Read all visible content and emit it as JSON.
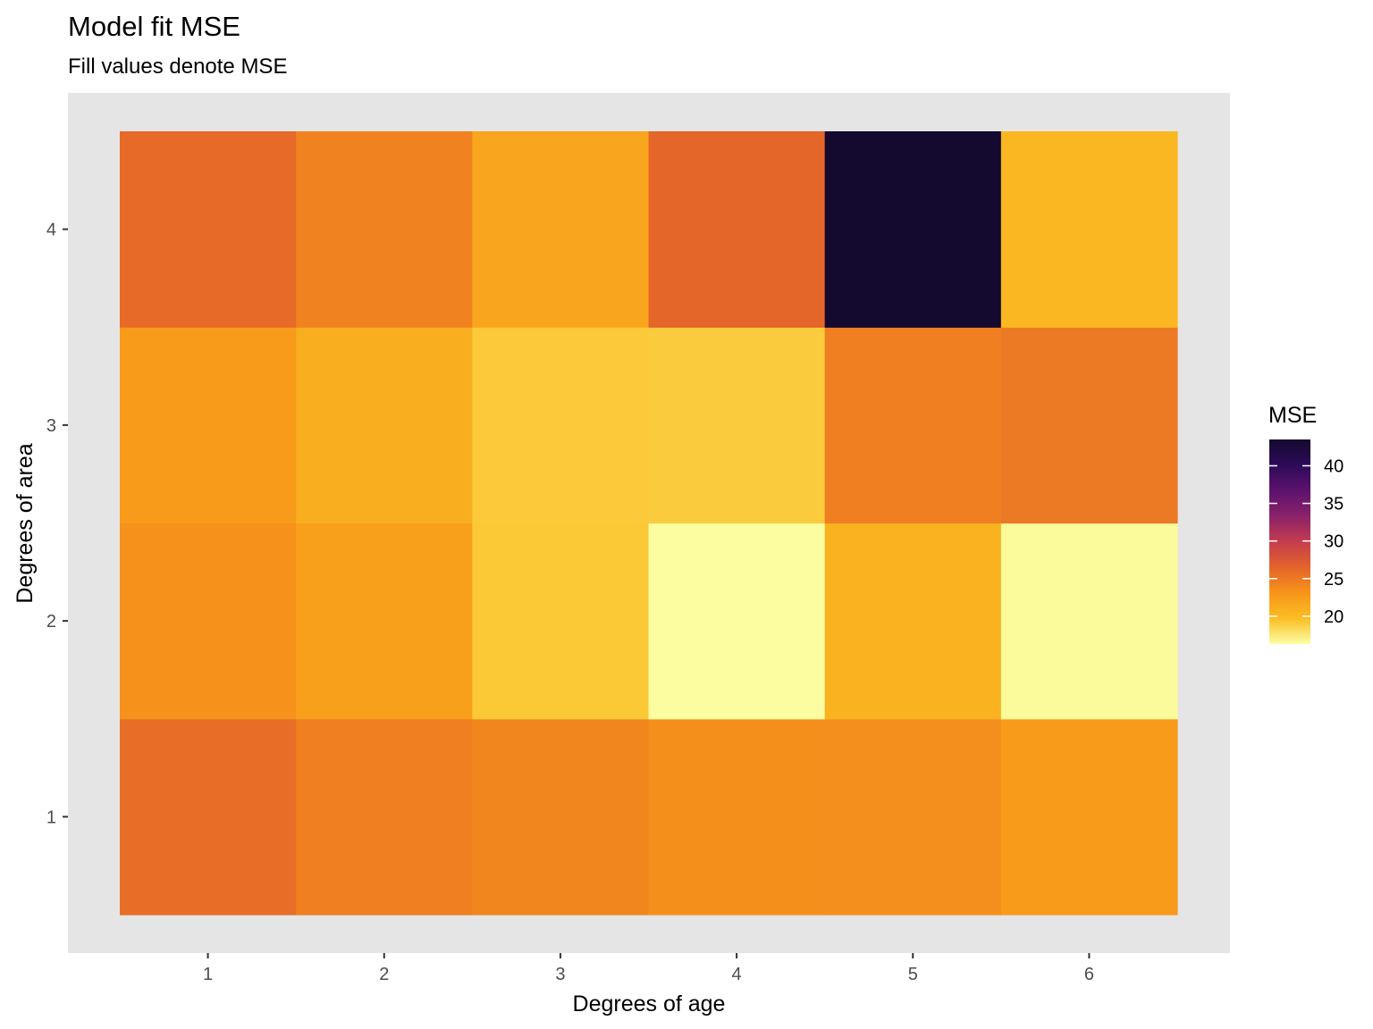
{
  "chart_data": {
    "type": "heatmap",
    "title": "Model fit MSE",
    "subtitle": "Fill values denote MSE",
    "xlabel": "Degrees of age",
    "ylabel": "Degrees of area",
    "x_categories": [
      "1",
      "2",
      "3",
      "4",
      "5",
      "6"
    ],
    "y_categories": [
      "1",
      "2",
      "3",
      "4"
    ],
    "values": [
      [
        25.8,
        24.6,
        24.1,
        23.5,
        23.6,
        22.6
      ],
      [
        23.3,
        22.2,
        19.2,
        16.4,
        20.7,
        16.5
      ],
      [
        22.6,
        21.0,
        19.1,
        19.0,
        24.6,
        25.0
      ],
      [
        26.0,
        24.4,
        21.8,
        26.3,
        43.5,
        20.3
      ]
    ],
    "colorbar": {
      "title": "MSE",
      "range": [
        16.3,
        43.5
      ],
      "ticks": [
        20,
        25,
        30,
        35,
        40
      ],
      "tick_labels": [
        "20",
        "25",
        "30",
        "35",
        "40"
      ]
    },
    "colors": {
      "panel_background": "#e5e5e5",
      "scale": [
        "#fcffa4",
        "#fbbe23",
        "#f7951a",
        "#e4632a",
        "#c43c4e",
        "#8a226a",
        "#5c126e",
        "#2d0b59",
        "#14092e"
      ]
    },
    "grid": false
  }
}
